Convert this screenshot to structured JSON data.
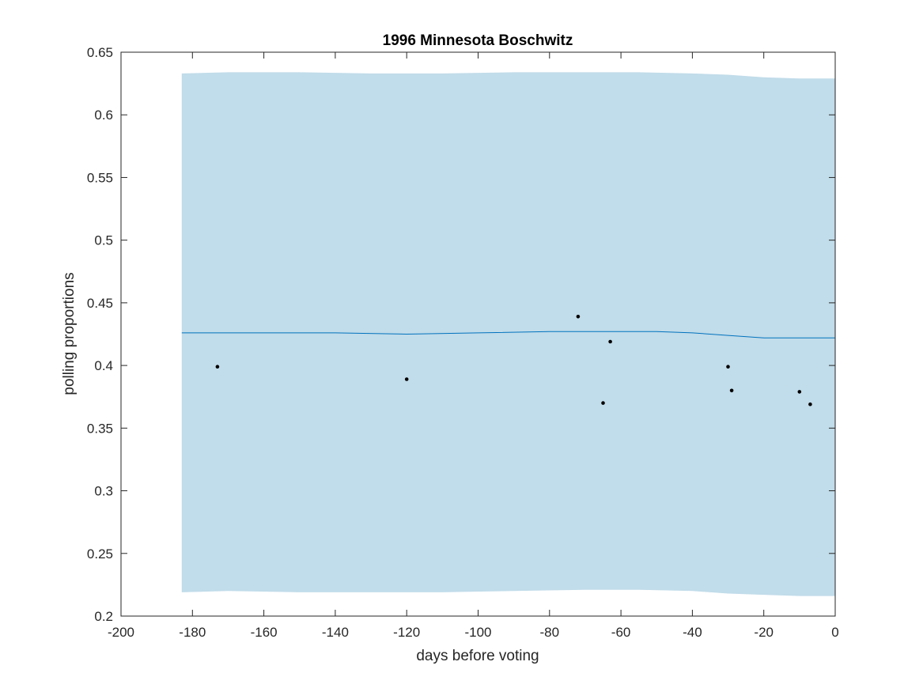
{
  "chart_data": {
    "type": "line",
    "title": "1996 Minnesota Boschwitz",
    "xlabel": "days before voting",
    "ylabel": "polling proportions",
    "xlim": [
      -200,
      0
    ],
    "ylim": [
      0.2,
      0.65
    ],
    "xticks": [
      -200,
      -180,
      -160,
      -140,
      -120,
      -100,
      -80,
      -60,
      -40,
      -20,
      0
    ],
    "xtick_labels": [
      "-200",
      "-180",
      "-160",
      "-140",
      "-120",
      "-100",
      "-80",
      "-60",
      "-40",
      "-20",
      "0"
    ],
    "yticks": [
      0.2,
      0.25,
      0.3,
      0.35,
      0.4,
      0.45,
      0.5,
      0.55,
      0.6,
      0.65
    ],
    "ytick_labels": [
      "0.2",
      "0.25",
      "0.3",
      "0.35",
      "0.4",
      "0.45",
      "0.5",
      "0.55",
      "0.6",
      "0.65"
    ],
    "grid": false,
    "band": {
      "x": [
        -183,
        -170,
        -150,
        -130,
        -110,
        -90,
        -70,
        -55,
        -40,
        -30,
        -20,
        -10,
        0
      ],
      "upper": [
        0.633,
        0.634,
        0.634,
        0.633,
        0.633,
        0.634,
        0.634,
        0.634,
        0.633,
        0.632,
        0.63,
        0.629,
        0.629
      ],
      "lower": [
        0.219,
        0.22,
        0.219,
        0.219,
        0.219,
        0.22,
        0.221,
        0.221,
        0.22,
        0.218,
        0.217,
        0.216,
        0.216
      ]
    },
    "trend": {
      "x": [
        -183,
        -160,
        -140,
        -120,
        -100,
        -80,
        -70,
        -60,
        -50,
        -40,
        -30,
        -20,
        -10,
        0
      ],
      "y": [
        0.426,
        0.426,
        0.426,
        0.425,
        0.426,
        0.427,
        0.427,
        0.427,
        0.427,
        0.426,
        0.424,
        0.422,
        0.422,
        0.422
      ]
    },
    "points": {
      "x": [
        -173,
        -120,
        -72,
        -65,
        -63,
        -30,
        -29,
        -10,
        -7
      ],
      "y": [
        0.399,
        0.389,
        0.439,
        0.37,
        0.419,
        0.399,
        0.38,
        0.379,
        0.369
      ]
    },
    "colors": {
      "band": "#c1dcea",
      "trend": "#0072bd",
      "points": "#000000",
      "axes": "#262626"
    }
  }
}
